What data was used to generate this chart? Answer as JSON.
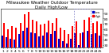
{
  "title": "Milwaukee Weather Outdoor Temperature",
  "subtitle": "Daily High/Low",
  "bar_highs": [
    72,
    60,
    65,
    62,
    72,
    88,
    93,
    78,
    75,
    68,
    70,
    76,
    72,
    80,
    62,
    58,
    50,
    65,
    74,
    52,
    78,
    82,
    72,
    75,
    70
  ],
  "bar_lows": [
    48,
    45,
    42,
    40,
    50,
    57,
    63,
    54,
    52,
    46,
    48,
    54,
    50,
    56,
    42,
    37,
    32,
    42,
    52,
    30,
    54,
    57,
    50,
    52,
    48
  ],
  "highlight_indices": [
    18,
    19,
    20,
    21
  ],
  "color_high": "#ff0000",
  "color_low": "#0000cc",
  "background_color": "#ffffff",
  "yticks": [
    30,
    40,
    50,
    60,
    70,
    80,
    90
  ],
  "ylim": [
    25,
    98
  ],
  "xlabels": [
    "1",
    "2",
    "3",
    "4",
    "5",
    "6",
    "7",
    "8",
    "9",
    "10",
    "11",
    "12",
    "13",
    "14",
    "15",
    "16",
    "17",
    "18",
    "19",
    "20",
    "21",
    "22",
    "23",
    "24",
    "25"
  ],
  "title_fontsize": 4.0,
  "tick_fontsize": 3.2,
  "legend_dot_blue": "#0000cc",
  "legend_dot_red": "#ff0000",
  "bar_width": 0.4
}
